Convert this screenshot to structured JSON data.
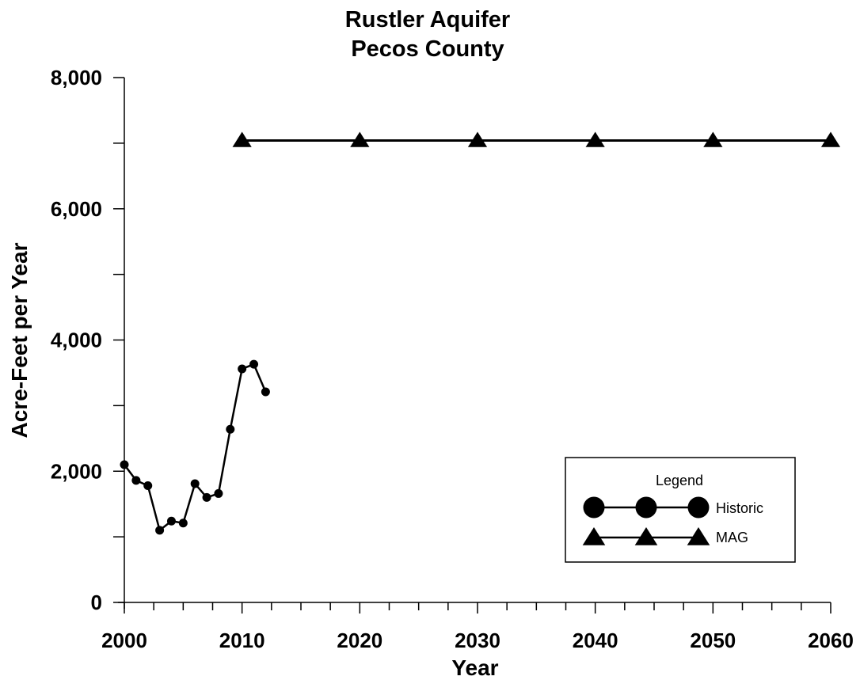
{
  "chart_data": {
    "type": "line",
    "title": "Rustler Aquifer",
    "subtitle": "Pecos County",
    "xlabel": "Year",
    "ylabel": "Acre-Feet per Year",
    "xlim": [
      2000,
      2060
    ],
    "ylim": [
      0,
      8000
    ],
    "x_ticks": [
      2000,
      2010,
      2020,
      2030,
      2040,
      2050,
      2060
    ],
    "x_tick_labels": [
      "2000",
      "2010",
      "2020",
      "2030",
      "2040",
      "2050",
      "2060"
    ],
    "y_ticks": [
      0,
      2000,
      4000,
      6000,
      8000
    ],
    "y_tick_labels": [
      "0",
      "2,000",
      "4,000",
      "6,000",
      "8,000"
    ],
    "grid": false,
    "legend": {
      "title": "Legend",
      "placement": "bottom-right"
    },
    "series": [
      {
        "name": "Historic",
        "marker": "circle",
        "color": "#000000",
        "x": [
          2000,
          2001,
          2002,
          2003,
          2004,
          2005,
          2006,
          2007,
          2008,
          2009,
          2010,
          2011,
          2012
        ],
        "y": [
          2100,
          1860,
          1780,
          1100,
          1240,
          1210,
          1810,
          1600,
          1660,
          2640,
          3560,
          3630,
          3210
        ]
      },
      {
        "name": "MAG",
        "marker": "triangle",
        "color": "#000000",
        "x": [
          2010,
          2020,
          2030,
          2040,
          2050,
          2060
        ],
        "y": [
          7040,
          7040,
          7040,
          7040,
          7040,
          7040
        ]
      }
    ]
  }
}
